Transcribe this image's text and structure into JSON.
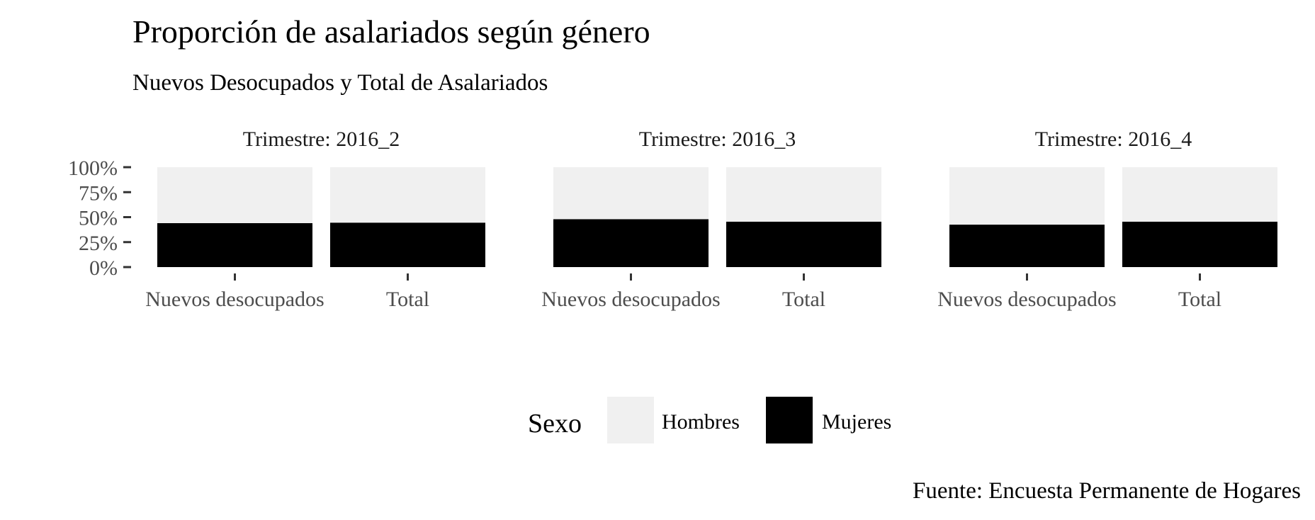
{
  "chart_data": {
    "type": "bar",
    "stacked": "percent",
    "title": "Proporción de asalariados según género",
    "subtitle": "Nuevos Desocupados y Total de Asalariados",
    "caption": "Fuente: Encuesta Permanente de Hogares",
    "facet_prefix": "Trimestre: ",
    "facets": [
      "2016_2",
      "2016_3",
      "2016_4"
    ],
    "categories": [
      "Nuevos desocupados",
      "Total"
    ],
    "series": [
      {
        "name": "Hombres",
        "color": "#f0f0f0",
        "values": [
          [
            0.56,
            0.555
          ],
          [
            0.52,
            0.545
          ],
          [
            0.575,
            0.545
          ]
        ]
      },
      {
        "name": "Mujeres",
        "color": "#000000",
        "values": [
          [
            0.44,
            0.445
          ],
          [
            0.48,
            0.455
          ],
          [
            0.425,
            0.455
          ]
        ]
      }
    ],
    "y_ticks": [
      "0%",
      "25%",
      "50%",
      "75%",
      "100%"
    ],
    "y_tick_values": [
      0,
      0.25,
      0.5,
      0.75,
      1.0
    ],
    "ylim": [
      0,
      1
    ],
    "grid": false,
    "legend": {
      "title": "Sexo",
      "position": "bottom"
    }
  }
}
